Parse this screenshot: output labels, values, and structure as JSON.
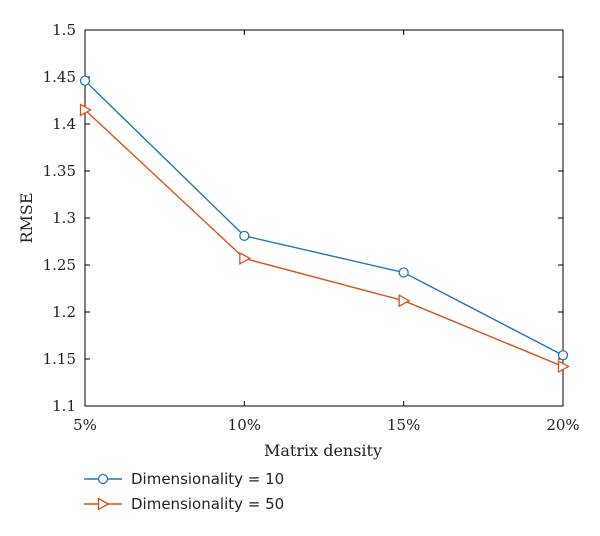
{
  "chart_data": {
    "type": "line",
    "categories": [
      "5%",
      "10%",
      "15%",
      "20%"
    ],
    "xlabel": "Matrix density",
    "ylabel": "RMSE",
    "ylim": [
      1.1,
      1.5
    ],
    "yticks": [
      "1.1",
      "1.15",
      "1.2",
      "1.25",
      "1.3",
      "1.35",
      "1.4",
      "1.45",
      "1.5"
    ],
    "grid": false,
    "legend_position": "bottom-left, below plot",
    "series": [
      {
        "name": "Dimensionality = 10",
        "values": [
          1.446,
          1.281,
          1.242,
          1.154
        ],
        "color": "#1f77b4",
        "marker": "circle"
      },
      {
        "name": "Dimensionality = 50",
        "values": [
          1.415,
          1.257,
          1.212,
          1.142
        ],
        "color": "#d95319",
        "marker": "triangle-right"
      }
    ]
  }
}
